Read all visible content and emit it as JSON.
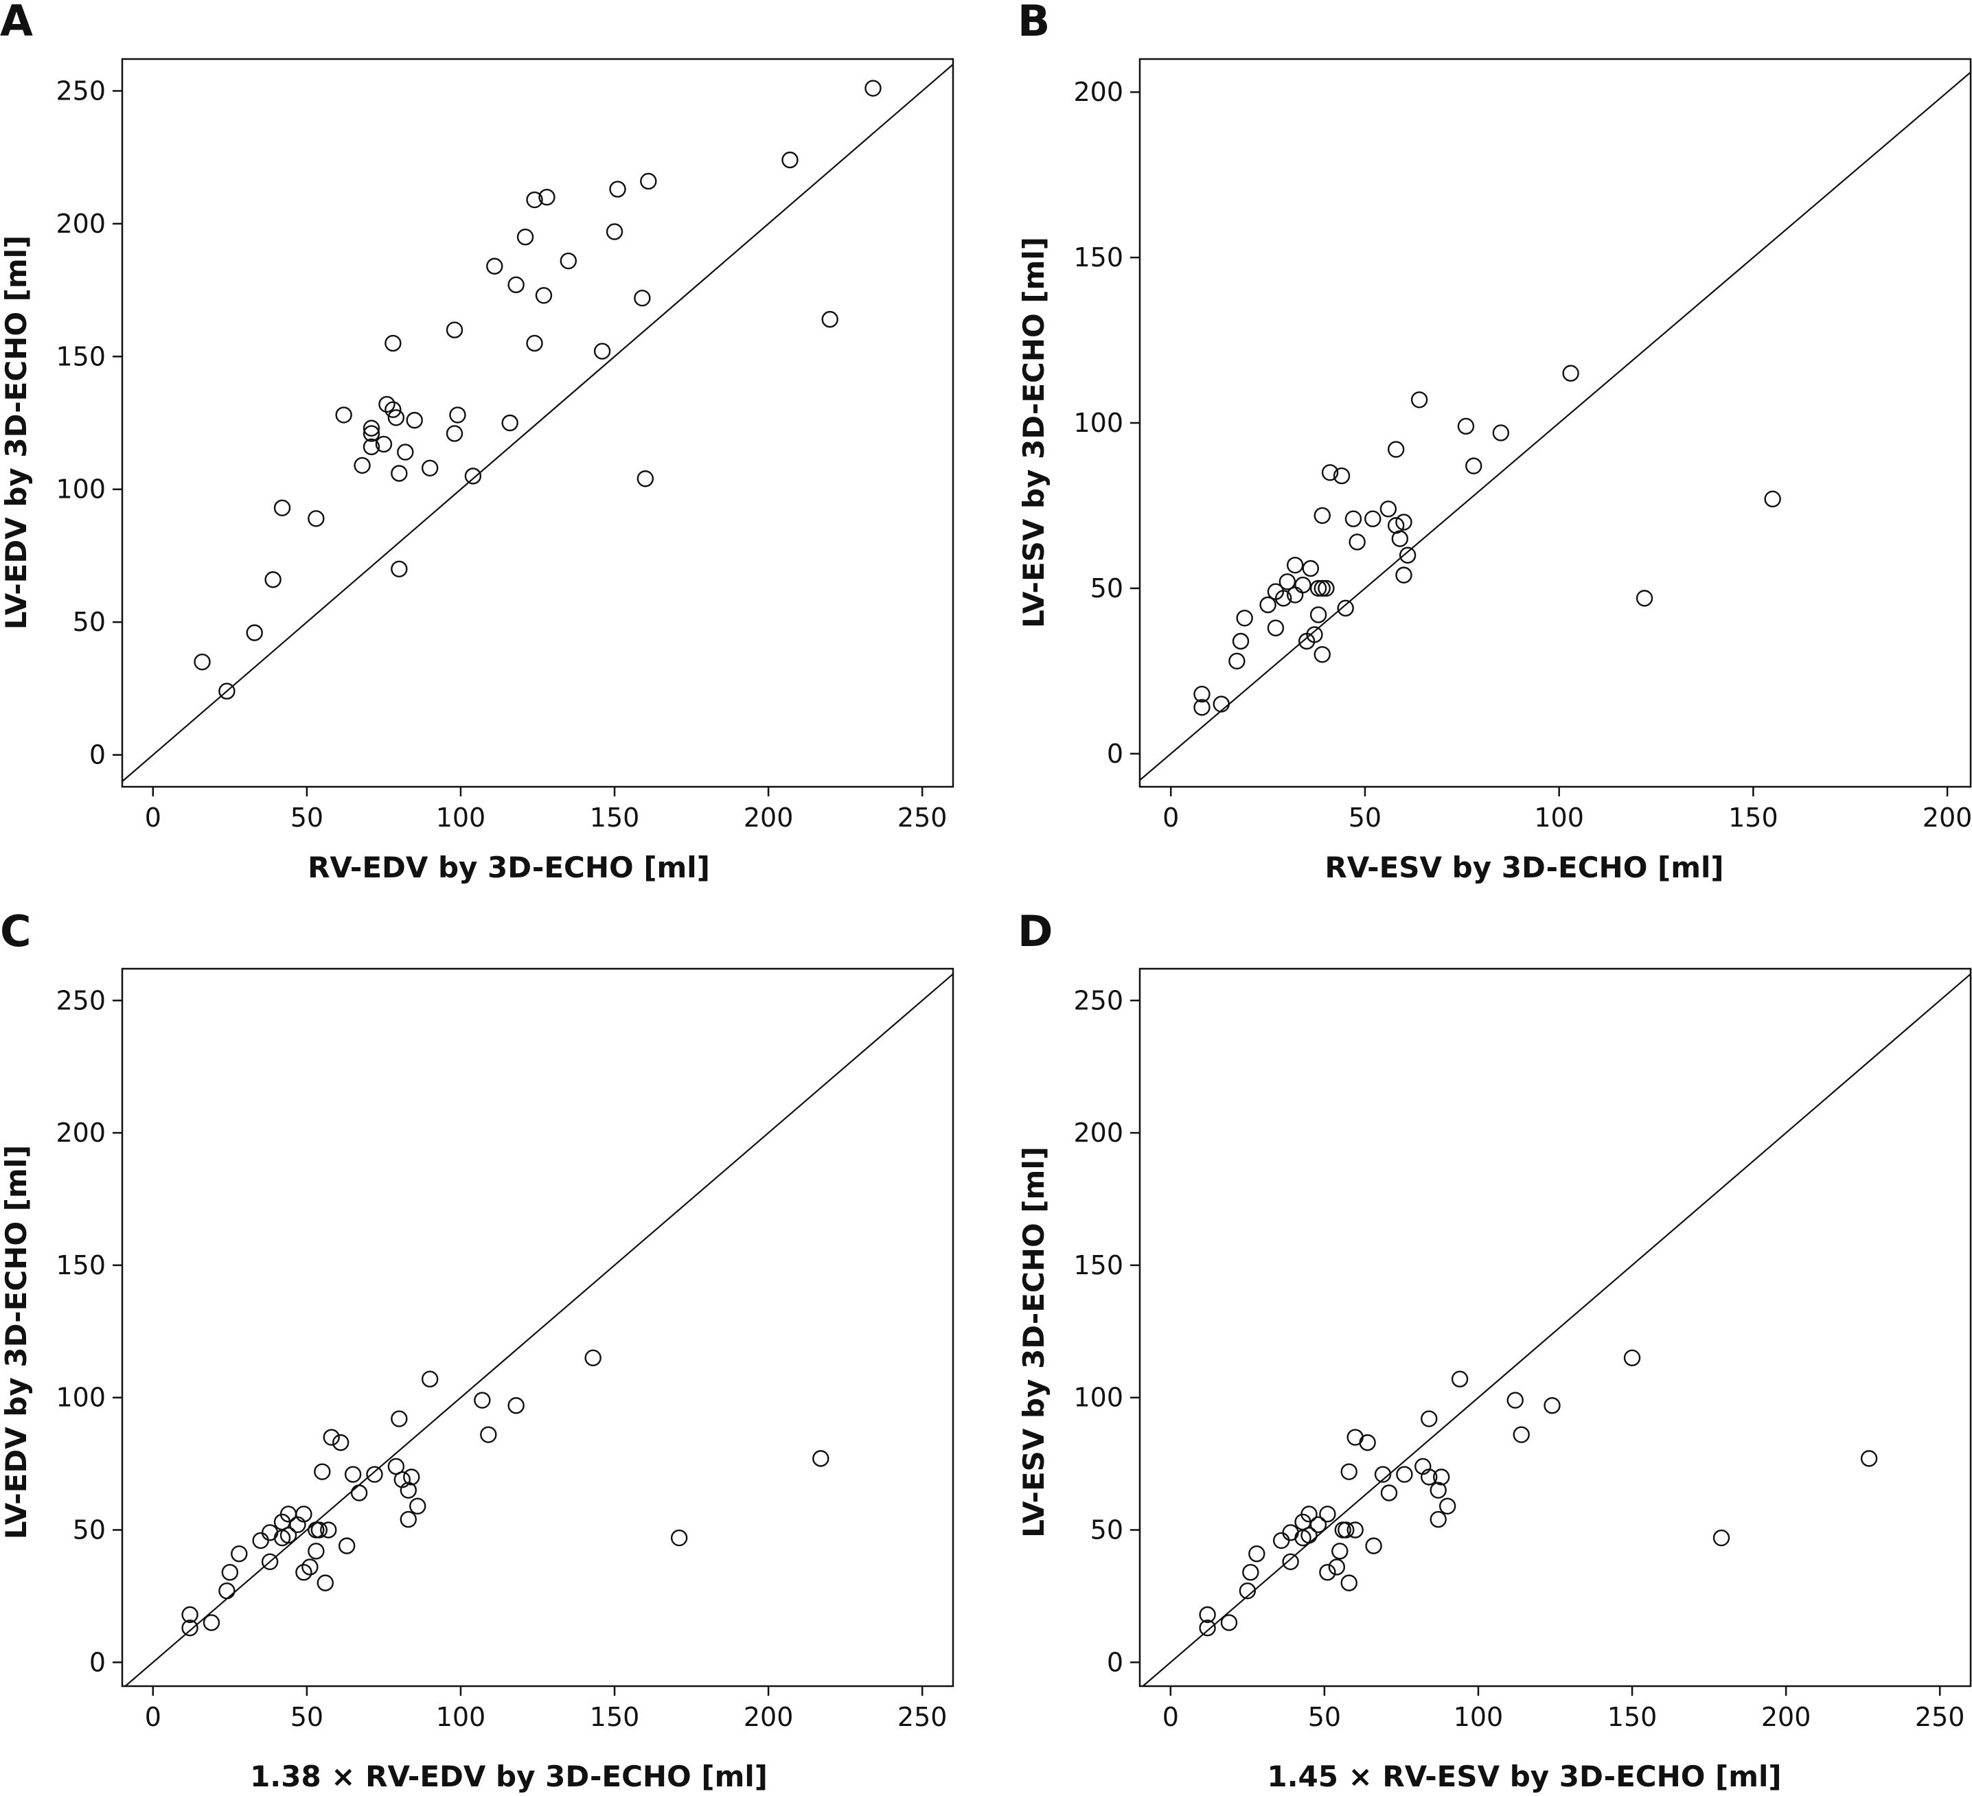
{
  "chart_data": [
    {
      "panel": "A",
      "type": "scatter",
      "xlabel": "RV-EDV by 3D-ECHO [ml]",
      "ylabel": "LV-EDV by 3D-ECHO [ml]",
      "xlim": [
        -10,
        260
      ],
      "ylim": [
        -12,
        262
      ],
      "xticks": [
        "0",
        "50",
        "100",
        "150",
        "200",
        "250"
      ],
      "yticks": [
        "0",
        "50",
        "100",
        "150",
        "200",
        "250"
      ],
      "identity_line": true,
      "points": [
        [
          16,
          35
        ],
        [
          24,
          24
        ],
        [
          33,
          46
        ],
        [
          39,
          66
        ],
        [
          42,
          93
        ],
        [
          53,
          89
        ],
        [
          62,
          128
        ],
        [
          68,
          109
        ],
        [
          71,
          116
        ],
        [
          71,
          121
        ],
        [
          71,
          123
        ],
        [
          75,
          117
        ],
        [
          76,
          132
        ],
        [
          78,
          130
        ],
        [
          78,
          155
        ],
        [
          79,
          127
        ],
        [
          80,
          106
        ],
        [
          80,
          70
        ],
        [
          82,
          114
        ],
        [
          85,
          126
        ],
        [
          90,
          108
        ],
        [
          98,
          160
        ],
        [
          98,
          121
        ],
        [
          99,
          128
        ],
        [
          104,
          105
        ],
        [
          111,
          184
        ],
        [
          116,
          125
        ],
        [
          118,
          177
        ],
        [
          121,
          195
        ],
        [
          124,
          155
        ],
        [
          124,
          209
        ],
        [
          127,
          173
        ],
        [
          128,
          210
        ],
        [
          135,
          186
        ],
        [
          146,
          152
        ],
        [
          150,
          197
        ],
        [
          151,
          213
        ],
        [
          159,
          172
        ],
        [
          160,
          104
        ],
        [
          161,
          216
        ],
        [
          207,
          224
        ],
        [
          220,
          164
        ],
        [
          234,
          251
        ]
      ]
    },
    {
      "panel": "B",
      "type": "scatter",
      "xlabel": "RV-ESV by 3D-ECHO [ml]",
      "ylabel": "LV-ESV by 3D-ECHO [ml]",
      "xlim": [
        -8,
        206
      ],
      "ylim": [
        -10,
        210
      ],
      "xticks": [
        "0",
        "50",
        "100",
        "150",
        "200"
      ],
      "yticks": [
        "0",
        "50",
        "100",
        "150",
        "200"
      ],
      "identity_line": true,
      "points": [
        [
          8,
          18
        ],
        [
          8,
          14
        ],
        [
          13,
          15
        ],
        [
          17,
          28
        ],
        [
          18,
          34
        ],
        [
          19,
          41
        ],
        [
          25,
          45
        ],
        [
          27,
          38
        ],
        [
          27,
          49
        ],
        [
          29,
          47
        ],
        [
          30,
          52
        ],
        [
          32,
          48
        ],
        [
          32,
          57
        ],
        [
          34,
          51
        ],
        [
          35,
          34
        ],
        [
          36,
          56
        ],
        [
          37,
          36
        ],
        [
          38,
          50
        ],
        [
          38,
          42
        ],
        [
          39,
          50
        ],
        [
          39,
          30
        ],
        [
          39,
          72
        ],
        [
          40,
          50
        ],
        [
          41,
          85
        ],
        [
          44,
          84
        ],
        [
          45,
          44
        ],
        [
          47,
          71
        ],
        [
          48,
          64
        ],
        [
          52,
          71
        ],
        [
          56,
          74
        ],
        [
          58,
          92
        ],
        [
          58,
          69
        ],
        [
          59,
          65
        ],
        [
          60,
          70
        ],
        [
          60,
          54
        ],
        [
          61,
          60
        ],
        [
          64,
          107
        ],
        [
          76,
          99
        ],
        [
          78,
          87
        ],
        [
          85,
          97
        ],
        [
          103,
          115
        ],
        [
          122,
          47
        ],
        [
          155,
          77
        ]
      ]
    },
    {
      "panel": "C",
      "type": "scatter",
      "xlabel": "1.38 × RV-EDV by 3D-ECHO [ml]",
      "ylabel": "LV-EDV by 3D-ECHO [ml]",
      "xlim": [
        -10,
        260
      ],
      "ylim": [
        -9,
        262
      ],
      "xticks": [
        "0",
        "50",
        "100",
        "150",
        "200",
        "250"
      ],
      "yticks": [
        "0",
        "50",
        "100",
        "150",
        "200",
        "250"
      ],
      "identity_line": true,
      "points": [
        [
          12,
          18
        ],
        [
          12,
          13
        ],
        [
          19,
          15
        ],
        [
          24,
          27
        ],
        [
          25,
          34
        ],
        [
          28,
          41
        ],
        [
          35,
          46
        ],
        [
          38,
          49
        ],
        [
          38,
          38
        ],
        [
          42,
          47
        ],
        [
          42,
          53
        ],
        [
          44,
          56
        ],
        [
          44,
          48
        ],
        [
          47,
          52
        ],
        [
          49,
          56
        ],
        [
          49,
          34
        ],
        [
          51,
          36
        ],
        [
          53,
          42
        ],
        [
          53,
          50
        ],
        [
          54,
          50
        ],
        [
          55,
          72
        ],
        [
          56,
          30
        ],
        [
          57,
          50
        ],
        [
          58,
          85
        ],
        [
          61,
          83
        ],
        [
          63,
          44
        ],
        [
          65,
          71
        ],
        [
          67,
          64
        ],
        [
          72,
          71
        ],
        [
          79,
          74
        ],
        [
          80,
          92
        ],
        [
          81,
          69
        ],
        [
          83,
          65
        ],
        [
          83,
          54
        ],
        [
          84,
          70
        ],
        [
          86,
          59
        ],
        [
          90,
          107
        ],
        [
          107,
          99
        ],
        [
          109,
          86
        ],
        [
          118,
          97
        ],
        [
          143,
          115
        ],
        [
          171,
          47
        ],
        [
          217,
          77
        ]
      ]
    },
    {
      "panel": "D",
      "type": "scatter",
      "xlabel": "1.45 × RV-ESV by 3D-ECHO [ml]",
      "ylabel": "LV-ESV by 3D-ECHO [ml]",
      "xlim": [
        -10,
        260
      ],
      "ylim": [
        -9,
        262
      ],
      "xticks": [
        "0",
        "50",
        "100",
        "150",
        "200",
        "250"
      ],
      "yticks": [
        "0",
        "50",
        "100",
        "150",
        "200",
        "250"
      ],
      "identity_line": true,
      "points": [
        [
          12,
          18
        ],
        [
          12,
          13
        ],
        [
          19,
          15
        ],
        [
          25,
          27
        ],
        [
          26,
          34
        ],
        [
          28,
          41
        ],
        [
          36,
          46
        ],
        [
          39,
          49
        ],
        [
          39,
          38
        ],
        [
          43,
          47
        ],
        [
          43,
          53
        ],
        [
          45,
          56
        ],
        [
          45,
          48
        ],
        [
          48,
          52
        ],
        [
          51,
          56
        ],
        [
          51,
          34
        ],
        [
          54,
          36
        ],
        [
          55,
          42
        ],
        [
          56,
          50
        ],
        [
          57,
          50
        ],
        [
          58,
          72
        ],
        [
          58,
          30
        ],
        [
          60,
          50
        ],
        [
          60,
          85
        ],
        [
          64,
          83
        ],
        [
          66,
          44
        ],
        [
          69,
          71
        ],
        [
          71,
          64
        ],
        [
          76,
          71
        ],
        [
          82,
          74
        ],
        [
          84,
          92
        ],
        [
          84,
          70
        ],
        [
          87,
          65
        ],
        [
          87,
          54
        ],
        [
          88,
          70
        ],
        [
          90,
          59
        ],
        [
          94,
          107
        ],
        [
          112,
          99
        ],
        [
          114,
          86
        ],
        [
          124,
          97
        ],
        [
          150,
          115
        ],
        [
          179,
          47
        ],
        [
          227,
          77
        ]
      ]
    }
  ]
}
